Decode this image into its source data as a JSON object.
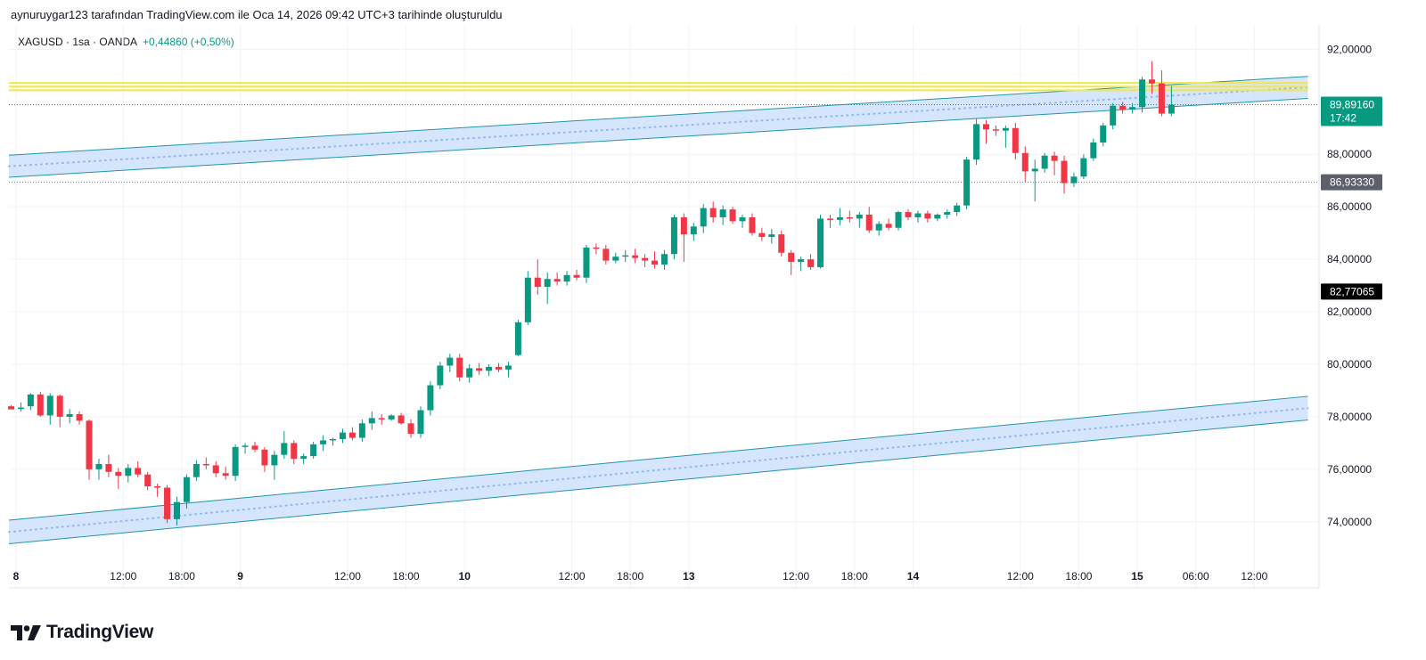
{
  "header": {
    "text": "aynuruygar123 tarafından TradingView.com ile Oca 14, 2026 09:42 UTC+3 tarihinde oluşturuldu"
  },
  "legend": {
    "symbol": "XAGUSD · 1sa · OANDA",
    "change": "+0,44860 (+0,50%)"
  },
  "brand": {
    "name": "TradingView",
    "logo_icon": "tradingview-logo-icon"
  },
  "colors": {
    "up": "#089981",
    "down": "#f23645",
    "channel_fill": "#c7dcfb",
    "channel_line": "#2196a6",
    "resistance": "#f5e642",
    "price_badge": "#089981",
    "grid": "#f0f3fa"
  },
  "chart_data": {
    "type": "candlestick",
    "ylim": [
      72.5,
      93.2
    ],
    "y_ticks": [
      "92,00000",
      "88,00000",
      "86,00000",
      "84,00000",
      "82,00000",
      "80,00000",
      "78,00000",
      "76,00000",
      "74,00000"
    ],
    "y_tick_values": [
      92,
      88,
      86,
      84,
      82,
      80,
      78,
      76,
      74
    ],
    "x_ticks": [
      {
        "label": "8",
        "bold": true,
        "i": 0.5
      },
      {
        "label": "12:00",
        "bold": false,
        "i": 11.5
      },
      {
        "label": "18:00",
        "bold": false,
        "i": 17.5
      },
      {
        "label": "9",
        "bold": true,
        "i": 23.5
      },
      {
        "label": "12:00",
        "bold": false,
        "i": 34.5
      },
      {
        "label": "18:00",
        "bold": false,
        "i": 40.5
      },
      {
        "label": "10",
        "bold": true,
        "i": 46.5
      },
      {
        "label": "12:00",
        "bold": false,
        "i": 57.5
      },
      {
        "label": "18:00",
        "bold": false,
        "i": 63.5
      },
      {
        "label": "13",
        "bold": true,
        "i": 69.5
      },
      {
        "label": "12:00",
        "bold": false,
        "i": 80.5
      },
      {
        "label": "18:00",
        "bold": false,
        "i": 86.5
      },
      {
        "label": "14",
        "bold": true,
        "i": 92.5
      },
      {
        "label": "12:00",
        "bold": false,
        "i": 103.5
      },
      {
        "label": "18:00",
        "bold": false,
        "i": 109.5
      },
      {
        "label": "15",
        "bold": true,
        "i": 115.5
      },
      {
        "label": "06:00",
        "bold": false,
        "i": 121.5
      },
      {
        "label": "12:00",
        "bold": false,
        "i": 127.5
      }
    ],
    "price_labels": [
      {
        "value": 89.8916,
        "text": "89,89160",
        "sub": "17:42",
        "style": "last"
      },
      {
        "value": 86.9333,
        "text": "86,93330",
        "style": "gray"
      },
      {
        "value": 82.77065,
        "text": "82,77065",
        "style": "black"
      }
    ],
    "resistance_lines": [
      90.72,
      90.58,
      90.44
    ],
    "channels": [
      {
        "start": {
          "i": 0,
          "v": 87.55
        },
        "end": {
          "i": 133,
          "v": 90.55
        },
        "half_width": 0.42
      },
      {
        "start": {
          "i": 0,
          "v": 73.62
        },
        "end": {
          "i": 133,
          "v": 78.33
        },
        "half_width": 0.45
      }
    ],
    "candles": [
      [
        78.4,
        78.45,
        78.3,
        78.28
      ],
      [
        78.3,
        78.55,
        78.2,
        78.35
      ],
      [
        78.4,
        78.9,
        78.25,
        78.85
      ],
      [
        78.85,
        78.95,
        78.0,
        78.05
      ],
      [
        78.05,
        78.9,
        77.7,
        78.8
      ],
      [
        78.8,
        78.85,
        77.6,
        78.0
      ],
      [
        78.0,
        78.3,
        77.75,
        78.1
      ],
      [
        78.1,
        78.2,
        77.7,
        77.85
      ],
      [
        77.85,
        77.9,
        75.6,
        76.0
      ],
      [
        76.0,
        76.4,
        75.6,
        76.2
      ],
      [
        76.2,
        76.55,
        75.7,
        75.9
      ],
      [
        75.9,
        76.05,
        75.25,
        75.75
      ],
      [
        75.75,
        76.2,
        75.5,
        76.05
      ],
      [
        76.05,
        76.3,
        75.7,
        75.8
      ],
      [
        75.8,
        75.9,
        75.2,
        75.35
      ],
      [
        75.35,
        75.45,
        74.95,
        75.3
      ],
      [
        75.3,
        75.4,
        73.95,
        74.1
      ],
      [
        74.1,
        74.95,
        73.85,
        74.75
      ],
      [
        74.75,
        75.8,
        74.5,
        75.7
      ],
      [
        75.7,
        76.35,
        75.55,
        76.2
      ],
      [
        76.2,
        76.45,
        76.0,
        76.15
      ],
      [
        76.15,
        76.3,
        75.7,
        75.85
      ],
      [
        75.85,
        76.1,
        75.6,
        75.75
      ],
      [
        75.75,
        76.95,
        75.55,
        76.85
      ],
      [
        76.85,
        77.0,
        76.6,
        76.9
      ],
      [
        76.9,
        77.05,
        76.65,
        76.75
      ],
      [
        76.75,
        76.85,
        75.9,
        76.15
      ],
      [
        76.15,
        76.7,
        75.6,
        76.55
      ],
      [
        76.55,
        77.45,
        76.4,
        77.0
      ],
      [
        77.0,
        77.1,
        76.2,
        76.4
      ],
      [
        76.4,
        76.6,
        76.2,
        76.5
      ],
      [
        76.5,
        77.05,
        76.4,
        76.95
      ],
      [
        76.95,
        77.3,
        76.7,
        77.1
      ],
      [
        77.1,
        77.2,
        76.9,
        77.15
      ],
      [
        77.15,
        77.55,
        77.0,
        77.4
      ],
      [
        77.4,
        77.6,
        77.1,
        77.2
      ],
      [
        77.2,
        77.9,
        77.05,
        77.75
      ],
      [
        77.75,
        78.2,
        77.5,
        77.95
      ],
      [
        77.95,
        78.1,
        77.7,
        77.9
      ],
      [
        77.9,
        78.1,
        77.85,
        78.05
      ],
      [
        78.05,
        78.15,
        77.7,
        77.75
      ],
      [
        77.75,
        77.9,
        77.2,
        77.35
      ],
      [
        77.35,
        78.4,
        77.2,
        78.25
      ],
      [
        78.25,
        79.35,
        78.05,
        79.2
      ],
      [
        79.2,
        80.1,
        79.05,
        79.95
      ],
      [
        79.95,
        80.4,
        79.7,
        80.25
      ],
      [
        80.25,
        80.4,
        79.35,
        79.5
      ],
      [
        79.5,
        80.0,
        79.3,
        79.85
      ],
      [
        79.85,
        80.05,
        79.6,
        79.75
      ],
      [
        79.75,
        80.0,
        79.55,
        79.9
      ],
      [
        79.9,
        80.05,
        79.7,
        79.8
      ],
      [
        79.8,
        80.1,
        79.5,
        79.95
      ],
      [
        80.35,
        81.7,
        80.3,
        81.6
      ],
      [
        81.6,
        83.55,
        81.5,
        83.3
      ],
      [
        83.3,
        84.0,
        82.65,
        82.95
      ],
      [
        82.95,
        83.5,
        82.3,
        83.25
      ],
      [
        83.25,
        83.5,
        83.0,
        83.15
      ],
      [
        83.15,
        83.55,
        83.0,
        83.4
      ],
      [
        83.4,
        83.6,
        83.2,
        83.3
      ],
      [
        83.3,
        84.55,
        83.1,
        84.45
      ],
      [
        84.45,
        84.6,
        84.2,
        84.4
      ],
      [
        84.4,
        84.55,
        83.8,
        83.95
      ],
      [
        83.95,
        84.25,
        83.85,
        84.1
      ],
      [
        84.1,
        84.35,
        83.9,
        84.15
      ],
      [
        84.15,
        84.4,
        83.85,
        84.05
      ],
      [
        84.05,
        84.2,
        83.7,
        83.95
      ],
      [
        83.95,
        84.3,
        83.65,
        83.8
      ],
      [
        83.8,
        84.35,
        83.6,
        84.2
      ],
      [
        84.2,
        85.7,
        84.0,
        85.6
      ],
      [
        85.6,
        85.75,
        83.9,
        84.95
      ],
      [
        84.95,
        85.4,
        84.7,
        85.25
      ],
      [
        85.25,
        86.1,
        85.0,
        85.95
      ],
      [
        85.95,
        86.2,
        85.4,
        85.6
      ],
      [
        85.6,
        86.05,
        85.3,
        85.9
      ],
      [
        85.9,
        86.0,
        85.35,
        85.45
      ],
      [
        85.45,
        85.7,
        85.2,
        85.6
      ],
      [
        85.6,
        85.75,
        84.9,
        85.0
      ],
      [
        85.0,
        85.2,
        84.7,
        84.85
      ],
      [
        84.85,
        85.15,
        84.6,
        84.95
      ],
      [
        84.95,
        85.1,
        84.1,
        84.25
      ],
      [
        84.25,
        84.35,
        83.4,
        83.9
      ],
      [
        83.9,
        84.1,
        83.55,
        84.0
      ],
      [
        84.0,
        84.2,
        83.6,
        83.7
      ],
      [
        83.7,
        85.7,
        83.65,
        85.55
      ],
      [
        85.55,
        85.7,
        85.2,
        85.5
      ],
      [
        85.5,
        85.95,
        85.3,
        85.6
      ],
      [
        85.6,
        85.85,
        85.4,
        85.55
      ],
      [
        85.55,
        85.8,
        85.2,
        85.7
      ],
      [
        85.7,
        86.0,
        85.0,
        85.1
      ],
      [
        85.1,
        85.45,
        84.9,
        85.35
      ],
      [
        85.35,
        85.55,
        85.1,
        85.2
      ],
      [
        85.2,
        85.85,
        85.1,
        85.8
      ],
      [
        85.8,
        85.9,
        85.5,
        85.6
      ],
      [
        85.6,
        85.85,
        85.4,
        85.75
      ],
      [
        85.75,
        85.85,
        85.4,
        85.55
      ],
      [
        85.55,
        85.75,
        85.45,
        85.7
      ],
      [
        85.7,
        85.9,
        85.55,
        85.8
      ],
      [
        85.8,
        86.15,
        85.65,
        86.05
      ],
      [
        86.05,
        87.9,
        85.9,
        87.8
      ],
      [
        87.8,
        89.35,
        87.6,
        89.15
      ],
      [
        89.15,
        89.3,
        88.4,
        88.95
      ],
      [
        88.95,
        89.1,
        88.7,
        88.9
      ],
      [
        88.9,
        89.1,
        88.25,
        89.0
      ],
      [
        89.0,
        89.2,
        87.8,
        88.05
      ],
      [
        88.05,
        88.3,
        86.95,
        87.35
      ],
      [
        87.35,
        87.8,
        86.2,
        87.45
      ],
      [
        87.45,
        88.05,
        87.3,
        87.95
      ],
      [
        87.95,
        88.1,
        87.2,
        87.75
      ],
      [
        87.75,
        87.95,
        86.5,
        86.9
      ],
      [
        86.9,
        87.3,
        86.75,
        87.15
      ],
      [
        87.15,
        88.0,
        87.05,
        87.85
      ],
      [
        87.85,
        88.6,
        87.75,
        88.45
      ],
      [
        88.45,
        89.2,
        88.3,
        89.1
      ],
      [
        89.1,
        89.95,
        88.95,
        89.85
      ],
      [
        89.85,
        90.0,
        89.55,
        89.7
      ],
      [
        89.7,
        89.95,
        89.55,
        89.8
      ],
      [
        89.8,
        90.95,
        89.6,
        90.85
      ],
      [
        90.85,
        91.55,
        90.3,
        90.7
      ],
      [
        90.7,
        91.2,
        89.45,
        89.55
      ],
      [
        89.55,
        90.6,
        89.45,
        89.89
      ]
    ]
  }
}
